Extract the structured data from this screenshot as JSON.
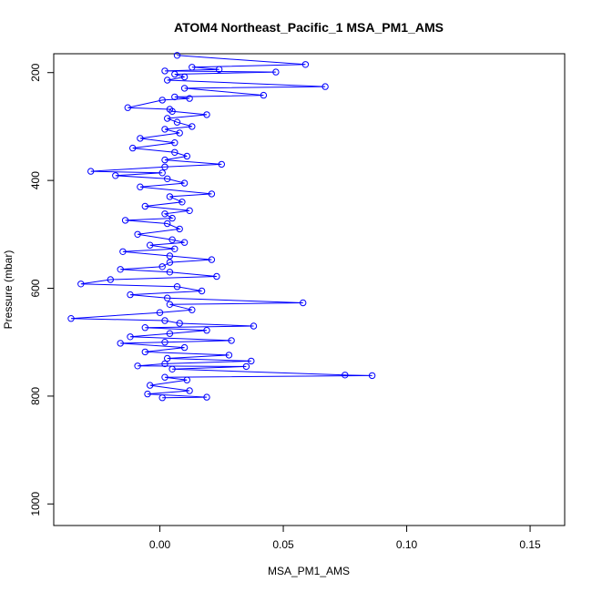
{
  "chart_data": {
    "type": "scatter",
    "title": "ATOM4 Northeast_Pacific_1 MSA_PM1_AMS",
    "xlabel": "MSA_PM1_AMS",
    "ylabel": "Pressure (mbar)",
    "xlim": [
      -0.043,
      0.164
    ],
    "ylim": [
      1040,
      165
    ],
    "y_reversed": true,
    "grid": false,
    "legend": "none",
    "x_ticks": [
      0.0,
      0.05,
      0.1,
      0.15
    ],
    "x_tick_labels": [
      "0.00",
      "0.05",
      "0.10",
      "0.15"
    ],
    "y_ticks": [
      200,
      400,
      600,
      800,
      1000
    ],
    "y_tick_labels": [
      "200",
      "400",
      "600",
      "800",
      "1000"
    ],
    "colors": {
      "series": "#0000ff",
      "axes": "#000000"
    },
    "series": [
      {
        "marker": "open-circle",
        "line": true,
        "points": [
          [
            0.007,
            168
          ],
          [
            0.059,
            185
          ],
          [
            0.013,
            190
          ],
          [
            0.024,
            194
          ],
          [
            0.002,
            197
          ],
          [
            0.047,
            199
          ],
          [
            0.006,
            203
          ],
          [
            0.01,
            208
          ],
          [
            0.003,
            214
          ],
          [
            0.067,
            226
          ],
          [
            0.01,
            229
          ],
          [
            0.042,
            242
          ],
          [
            0.006,
            245
          ],
          [
            0.012,
            248
          ],
          [
            0.001,
            251
          ],
          [
            -0.013,
            265
          ],
          [
            0.004,
            268
          ],
          [
            0.005,
            272
          ],
          [
            0.019,
            278
          ],
          [
            0.003,
            285
          ],
          [
            0.007,
            292
          ],
          [
            0.013,
            300
          ],
          [
            0.002,
            305
          ],
          [
            0.008,
            312
          ],
          [
            -0.008,
            322
          ],
          [
            0.006,
            330
          ],
          [
            -0.011,
            340
          ],
          [
            0.006,
            348
          ],
          [
            0.011,
            355
          ],
          [
            0.002,
            362
          ],
          [
            0.025,
            370
          ],
          [
            0.002,
            375
          ],
          [
            -0.028,
            383
          ],
          [
            0.001,
            386
          ],
          [
            -0.018,
            391
          ],
          [
            0.003,
            397
          ],
          [
            0.01,
            405
          ],
          [
            -0.008,
            412
          ],
          [
            0.021,
            425
          ],
          [
            0.004,
            430
          ],
          [
            0.009,
            440
          ],
          [
            -0.006,
            448
          ],
          [
            0.012,
            456
          ],
          [
            0.002,
            462
          ],
          [
            0.005,
            470
          ],
          [
            -0.014,
            474
          ],
          [
            0.003,
            480
          ],
          [
            0.008,
            490
          ],
          [
            -0.009,
            500
          ],
          [
            0.005,
            510
          ],
          [
            0.01,
            515
          ],
          [
            -0.004,
            520
          ],
          [
            0.006,
            527
          ],
          [
            -0.015,
            532
          ],
          [
            0.004,
            540
          ],
          [
            0.021,
            547
          ],
          [
            0.004,
            552
          ],
          [
            0.001,
            560
          ],
          [
            -0.016,
            565
          ],
          [
            0.004,
            570
          ],
          [
            0.023,
            578
          ],
          [
            -0.02,
            584
          ],
          [
            -0.032,
            592
          ],
          [
            0.007,
            597
          ],
          [
            0.017,
            605
          ],
          [
            -0.012,
            612
          ],
          [
            0.003,
            618
          ],
          [
            0.058,
            627
          ],
          [
            0.004,
            630
          ],
          [
            0.013,
            640
          ],
          [
            0.0,
            645
          ],
          [
            -0.036,
            656
          ],
          [
            0.002,
            660
          ],
          [
            0.008,
            665
          ],
          [
            0.038,
            670
          ],
          [
            -0.006,
            673
          ],
          [
            0.019,
            678
          ],
          [
            0.004,
            684
          ],
          [
            -0.012,
            690
          ],
          [
            0.029,
            697
          ],
          [
            0.002,
            700
          ],
          [
            -0.016,
            702
          ],
          [
            0.01,
            710
          ],
          [
            -0.006,
            718
          ],
          [
            0.028,
            724
          ],
          [
            0.003,
            730
          ],
          [
            0.037,
            735
          ],
          [
            0.002,
            740
          ],
          [
            -0.009,
            744
          ],
          [
            0.035,
            745
          ],
          [
            0.005,
            750
          ],
          [
            0.075,
            761
          ],
          [
            0.086,
            762
          ],
          [
            0.002,
            765
          ],
          [
            0.011,
            770
          ],
          [
            -0.004,
            780
          ],
          [
            0.012,
            790
          ],
          [
            -0.005,
            796
          ],
          [
            0.019,
            802
          ],
          [
            0.001,
            803
          ]
        ]
      }
    ]
  }
}
